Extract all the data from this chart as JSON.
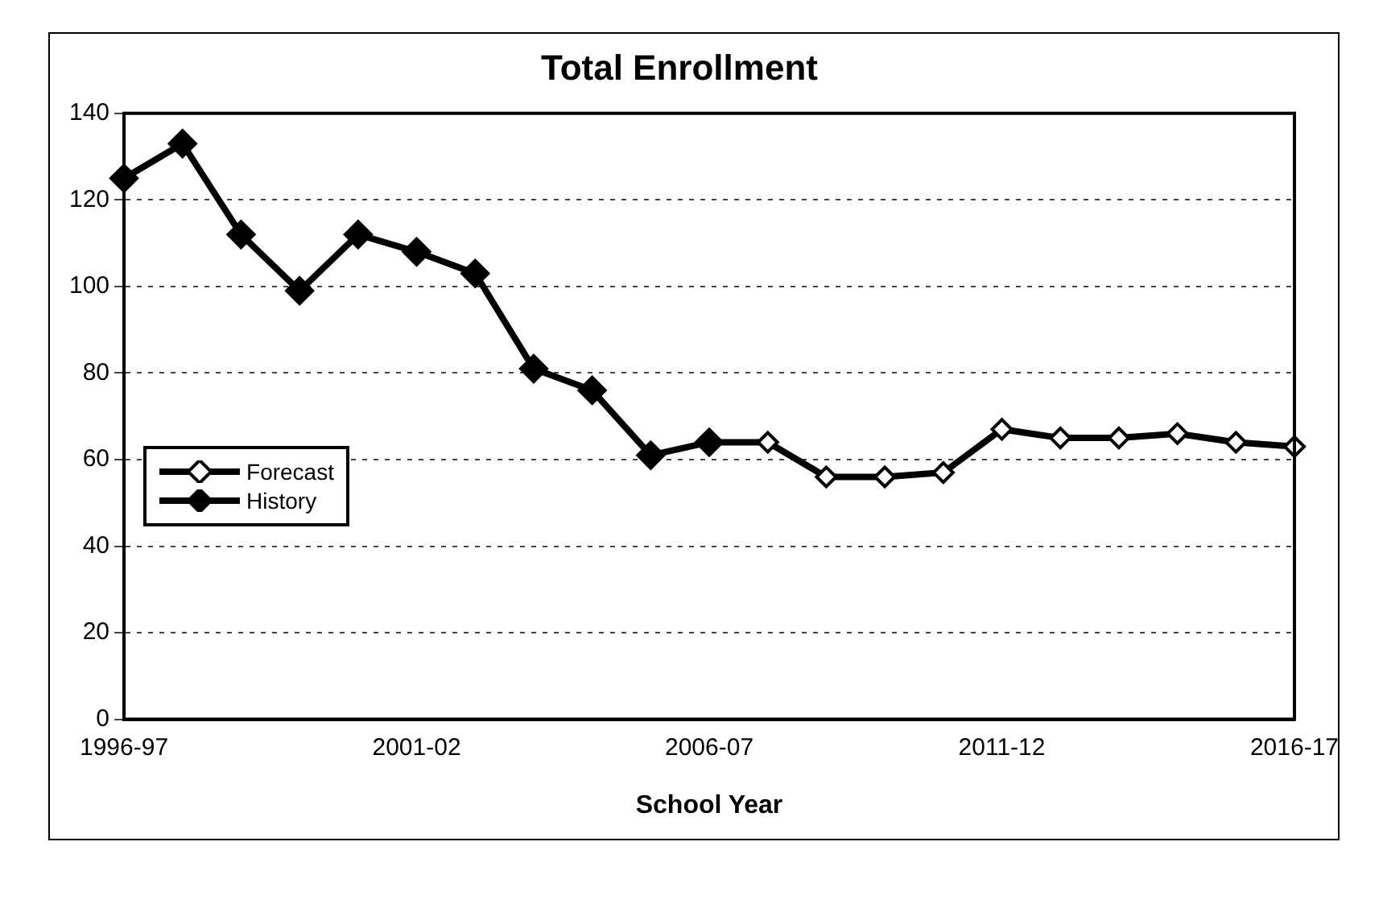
{
  "chart_data": {
    "type": "line",
    "title": "Total Enrollment",
    "xlabel": "School Year",
    "categories": [
      "1996-97",
      null,
      null,
      null,
      null,
      "2001-02",
      null,
      null,
      null,
      null,
      "2006-07",
      null,
      null,
      null,
      null,
      "2011-12",
      null,
      null,
      null,
      null,
      "2016-17"
    ],
    "series": [
      {
        "name": "Forecast",
        "color": "#000000",
        "values": [
          null,
          null,
          null,
          null,
          null,
          null,
          null,
          null,
          null,
          null,
          64,
          64,
          56,
          56,
          57,
          67,
          65,
          65,
          66,
          64,
          63
        ]
      },
      {
        "name": "History",
        "color": "#000000",
        "values": [
          125,
          133,
          112,
          99,
          112,
          108,
          103,
          81,
          76,
          61,
          64,
          null,
          null,
          null,
          null,
          null,
          null,
          null,
          null,
          null,
          null
        ]
      }
    ],
    "ylim": [
      0,
      140
    ],
    "yticks": [
      0,
      20,
      40,
      60,
      80,
      100,
      120,
      140
    ],
    "grid": "y",
    "legend": "left",
    "marker": "diamond",
    "line_style": "solid"
  }
}
